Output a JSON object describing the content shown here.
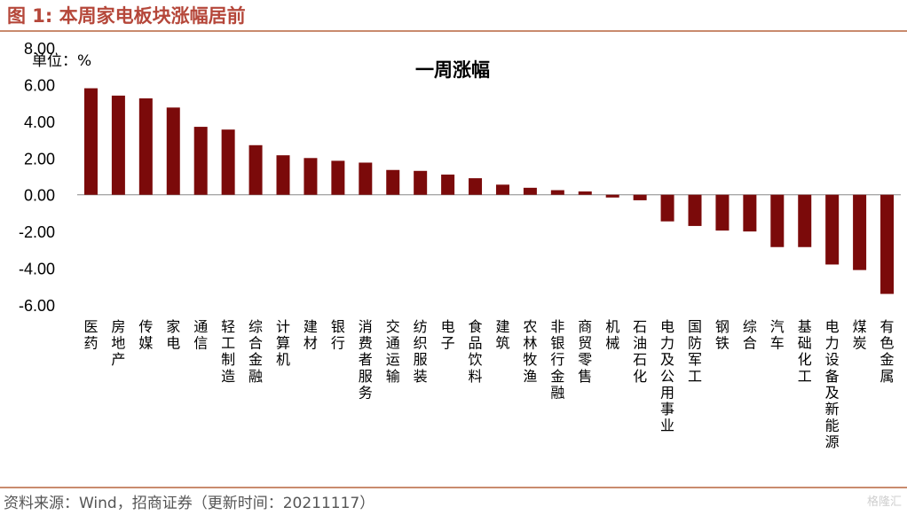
{
  "header": {
    "figure_title": "图 1:  本周家电板块涨幅居前"
  },
  "footer": {
    "source": "资料来源：Wind，招商证券（更新时间：20211117）",
    "watermark": "格隆汇"
  },
  "colors": {
    "bar": "#7b0a0a",
    "title": "#b5473a",
    "rule": "#c98b6e"
  },
  "chart_data": {
    "type": "bar",
    "title": "一周涨幅",
    "unit_label": "单位：%",
    "ylim": [
      -6,
      8
    ],
    "yticks": [
      8,
      6,
      4,
      2,
      0,
      -2,
      -4,
      -6
    ],
    "ytick_labels": [
      "8.00",
      "6.00",
      "4.00",
      "2.00",
      "0.00",
      "-2.00",
      "-4.00",
      "-6.00"
    ],
    "grid": false,
    "categories": [
      "医药",
      "房地产",
      "传媒",
      "家电",
      "通信",
      "轻工制造",
      "综合金融",
      "计算机",
      "建材",
      "银行",
      "消费者服务",
      "交通运输",
      "纺织服装",
      "电子",
      "食品饮料",
      "建筑",
      "农林牧渔",
      "非银行金融",
      "商贸零售",
      "机械",
      "石油石化",
      "电力及公用事业",
      "国防军工",
      "钢铁",
      "综合",
      "汽车",
      "基础化工",
      "电力设备及新能源",
      "煤炭",
      "有色金属"
    ],
    "values": [
      5.8,
      5.4,
      5.25,
      4.75,
      3.7,
      3.55,
      2.7,
      2.15,
      2.0,
      1.85,
      1.75,
      1.35,
      1.3,
      1.1,
      0.9,
      0.55,
      0.38,
      0.25,
      0.18,
      -0.15,
      -0.3,
      -1.45,
      -1.7,
      -1.95,
      -2.0,
      -2.85,
      -2.85,
      -3.8,
      -4.1,
      -5.4
    ]
  }
}
